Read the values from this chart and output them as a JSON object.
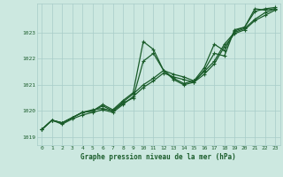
{
  "background_color": "#cce8e0",
  "grid_color": "#a8ccc8",
  "line_color": "#1a5c2a",
  "text_color": "#1a5c2a",
  "xlabel": "Graphe pression niveau de la mer (hPa)",
  "ylim": [
    1018.7,
    1024.1
  ],
  "xlim": [
    -0.5,
    23.5
  ],
  "yticks": [
    1019,
    1020,
    1021,
    1022,
    1023
  ],
  "xticks": [
    0,
    1,
    2,
    3,
    4,
    5,
    6,
    7,
    8,
    9,
    10,
    11,
    12,
    13,
    14,
    15,
    16,
    17,
    18,
    19,
    20,
    21,
    22,
    23
  ],
  "series1": [
    1019.3,
    1019.65,
    1019.55,
    1019.75,
    1019.95,
    1020.0,
    1020.25,
    1020.05,
    1020.4,
    1020.7,
    1022.65,
    1022.35,
    1021.55,
    1021.25,
    1021.05,
    1021.15,
    1021.65,
    1022.55,
    1022.3,
    1023.05,
    1023.2,
    1023.9,
    1023.85,
    1023.9
  ],
  "series2": [
    1019.3,
    1019.65,
    1019.55,
    1019.75,
    1019.95,
    1020.0,
    1020.2,
    1020.0,
    1020.35,
    1020.65,
    1021.0,
    1021.25,
    1021.55,
    1021.4,
    1021.3,
    1021.15,
    1021.5,
    1021.9,
    1022.55,
    1023.0,
    1023.15,
    1023.5,
    1023.75,
    1023.9
  ],
  "series3": [
    1019.3,
    1019.65,
    1019.55,
    1019.75,
    1019.95,
    1020.05,
    1020.1,
    1020.0,
    1020.3,
    1020.5,
    1021.9,
    1022.2,
    1021.55,
    1021.2,
    1021.0,
    1021.1,
    1021.55,
    1022.2,
    1022.1,
    1023.1,
    1023.2,
    1023.8,
    1023.9,
    1023.95
  ],
  "series4": [
    1019.3,
    1019.65,
    1019.5,
    1019.7,
    1019.85,
    1019.95,
    1020.05,
    1019.95,
    1020.25,
    1020.55,
    1020.9,
    1021.15,
    1021.45,
    1021.3,
    1021.2,
    1021.1,
    1021.4,
    1021.8,
    1022.45,
    1022.95,
    1023.1,
    1023.45,
    1023.65,
    1023.85
  ],
  "xlabel_fontsize": 5.5,
  "tick_fontsize": 4.5
}
